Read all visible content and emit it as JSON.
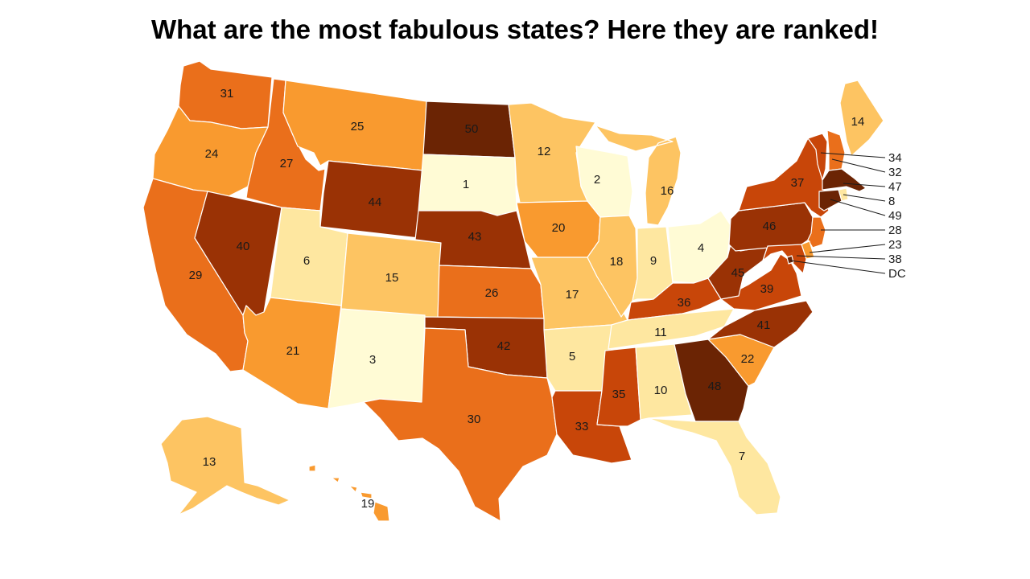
{
  "title": "What are the most fabulous states? Here they are ranked!",
  "color_scale": {
    "type": "sequential",
    "min_rank": 1,
    "max_rank": 50,
    "colors": [
      "#fffbd5",
      "#fee7a0",
      "#fdc462",
      "#f99a2f",
      "#ea6f1b",
      "#c84609",
      "#9a3205",
      "#6b2404"
    ]
  },
  "states": [
    {
      "code": "WA",
      "rank": "31"
    },
    {
      "code": "OR",
      "rank": "24"
    },
    {
      "code": "CA",
      "rank": "29"
    },
    {
      "code": "NV",
      "rank": "40"
    },
    {
      "code": "ID",
      "rank": "27"
    },
    {
      "code": "MT",
      "rank": "25"
    },
    {
      "code": "WY",
      "rank": "44"
    },
    {
      "code": "UT",
      "rank": "6"
    },
    {
      "code": "AZ",
      "rank": "21"
    },
    {
      "code": "CO",
      "rank": "15"
    },
    {
      "code": "NM",
      "rank": "3"
    },
    {
      "code": "ND",
      "rank": "50"
    },
    {
      "code": "SD",
      "rank": "1"
    },
    {
      "code": "NE",
      "rank": "43"
    },
    {
      "code": "KS",
      "rank": "26"
    },
    {
      "code": "OK",
      "rank": "42"
    },
    {
      "code": "TX",
      "rank": "30"
    },
    {
      "code": "MN",
      "rank": "12"
    },
    {
      "code": "IA",
      "rank": "20"
    },
    {
      "code": "MO",
      "rank": "17"
    },
    {
      "code": "AR",
      "rank": "5"
    },
    {
      "code": "LA",
      "rank": "33"
    },
    {
      "code": "WI",
      "rank": "2"
    },
    {
      "code": "IL",
      "rank": "18"
    },
    {
      "code": "MI",
      "rank": "16"
    },
    {
      "code": "IN",
      "rank": "9"
    },
    {
      "code": "OH",
      "rank": "4"
    },
    {
      "code": "KY",
      "rank": "36"
    },
    {
      "code": "TN",
      "rank": "11"
    },
    {
      "code": "MS",
      "rank": "35"
    },
    {
      "code": "AL",
      "rank": "10"
    },
    {
      "code": "GA",
      "rank": "48"
    },
    {
      "code": "FL",
      "rank": "7"
    },
    {
      "code": "SC",
      "rank": "22"
    },
    {
      "code": "NC",
      "rank": "41"
    },
    {
      "code": "VA",
      "rank": "39"
    },
    {
      "code": "WV",
      "rank": "45"
    },
    {
      "code": "PA",
      "rank": "46"
    },
    {
      "code": "NY",
      "rank": "37"
    },
    {
      "code": "ME",
      "rank": "14"
    },
    {
      "code": "AK",
      "rank": "13"
    },
    {
      "code": "HI",
      "rank": "19"
    },
    {
      "code": "VT",
      "rank": "34"
    },
    {
      "code": "NH",
      "rank": "32"
    },
    {
      "code": "MA",
      "rank": "47"
    },
    {
      "code": "RI",
      "rank": "8"
    },
    {
      "code": "CT",
      "rank": "49"
    },
    {
      "code": "NJ",
      "rank": "28"
    },
    {
      "code": "DE",
      "rank": "23"
    },
    {
      "code": "MD",
      "rank": "38"
    },
    {
      "code": "DC",
      "rank": "DC"
    }
  ]
}
